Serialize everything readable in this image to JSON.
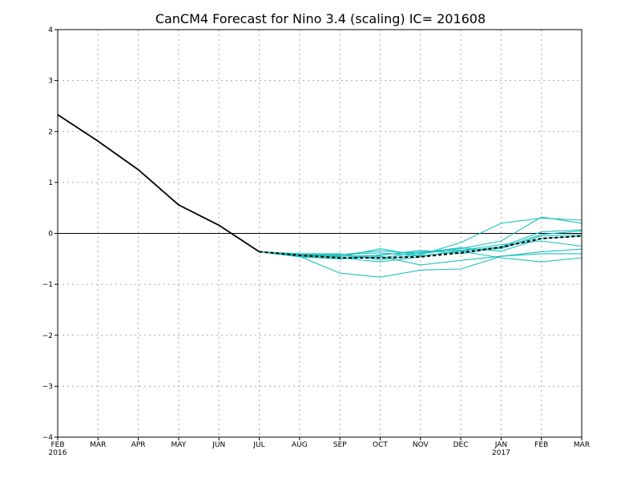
{
  "chart_data": {
    "type": "line",
    "title": "CanCM4 Forecast for Nino 3.4 (scaling)  IC= 201608",
    "xlabel": "",
    "ylabel": "",
    "categories": [
      "FEB",
      "MAR",
      "APR",
      "MAY",
      "JUN",
      "JUL",
      "AUG",
      "SEP",
      "OCT",
      "NOV",
      "DEC",
      "JAN",
      "FEB",
      "MAR"
    ],
    "year_labels": [
      {
        "index": 0,
        "text": "2016"
      },
      {
        "index": 11,
        "text": "2017"
      }
    ],
    "ylim": [
      -4,
      4
    ],
    "yticks": [
      "4",
      "3",
      "2",
      "1",
      "0",
      "−1",
      "−2",
      "−3",
      "−4"
    ],
    "ytick_values": [
      4,
      3,
      2,
      1,
      0,
      -1,
      -2,
      -3,
      -4
    ],
    "grid": true,
    "zero_line": true,
    "colors": {
      "observed": "#000000",
      "members": "#20c0c0",
      "ensemble_mean": "#000000",
      "grid": "#aaaaaa"
    },
    "observed": {
      "x": [
        0,
        1,
        2,
        3,
        4,
        5
      ],
      "values": [
        2.33,
        1.81,
        1.25,
        0.56,
        0.16,
        -0.36
      ]
    },
    "members": [
      {
        "x": [
          5,
          6,
          7,
          8,
          9,
          10,
          11,
          12,
          13
        ],
        "values": [
          -0.36,
          -0.42,
          -0.42,
          -0.38,
          -0.45,
          -0.35,
          -0.26,
          0.03,
          0.07
        ]
      },
      {
        "x": [
          5,
          6,
          7,
          8,
          9,
          10,
          11,
          12,
          13
        ],
        "values": [
          -0.36,
          -0.45,
          -0.78,
          -0.86,
          -0.72,
          -0.7,
          -0.45,
          -0.36,
          -0.31
        ]
      },
      {
        "x": [
          5,
          6,
          7,
          8,
          9,
          10,
          11,
          12,
          13
        ],
        "values": [
          -0.36,
          -0.4,
          -0.4,
          -0.52,
          -0.42,
          -0.18,
          0.2,
          0.3,
          0.26
        ]
      },
      {
        "x": [
          5,
          6,
          7,
          8,
          9,
          10,
          11,
          12,
          13
        ],
        "values": [
          -0.36,
          -0.45,
          -0.42,
          -0.34,
          -0.4,
          -0.3,
          -0.15,
          0.32,
          0.2
        ]
      },
      {
        "x": [
          5,
          6,
          7,
          8,
          9,
          10,
          11,
          12,
          13
        ],
        "values": [
          -0.36,
          -0.46,
          -0.5,
          -0.45,
          -0.62,
          -0.53,
          -0.45,
          -0.4,
          -0.4
        ]
      },
      {
        "x": [
          5,
          6,
          7,
          8,
          9,
          10,
          11,
          12,
          13
        ],
        "values": [
          -0.36,
          -0.42,
          -0.48,
          -0.56,
          -0.46,
          -0.33,
          -0.3,
          -0.05,
          -0.02
        ]
      },
      {
        "x": [
          5,
          6,
          7,
          8,
          9,
          10,
          11,
          12,
          13
        ],
        "values": [
          -0.36,
          -0.4,
          -0.45,
          -0.43,
          -0.33,
          -0.4,
          -0.28,
          -0.02,
          0.05
        ]
      },
      {
        "x": [
          5,
          6,
          7,
          8,
          9,
          10,
          11,
          12,
          13
        ],
        "values": [
          -0.36,
          -0.44,
          -0.46,
          -0.3,
          -0.44,
          -0.35,
          -0.48,
          -0.56,
          -0.48
        ]
      },
      {
        "x": [
          5,
          6,
          7,
          8,
          9,
          10,
          11,
          12,
          13
        ],
        "values": [
          -0.36,
          -0.45,
          -0.5,
          -0.42,
          -0.36,
          -0.33,
          -0.22,
          -0.15,
          -0.25
        ]
      },
      {
        "x": [
          5,
          6,
          7,
          8,
          9,
          10,
          11,
          12,
          13
        ],
        "values": [
          -0.36,
          -0.43,
          -0.44,
          -0.48,
          -0.38,
          -0.28,
          -0.35,
          -0.1,
          -0.05
        ]
      }
    ],
    "ensemble_mean": {
      "x": [
        5,
        6,
        7,
        8,
        9,
        10,
        11,
        12,
        13
      ],
      "values": [
        -0.36,
        -0.43,
        -0.48,
        -0.48,
        -0.46,
        -0.38,
        -0.27,
        -0.1,
        -0.05
      ]
    }
  }
}
